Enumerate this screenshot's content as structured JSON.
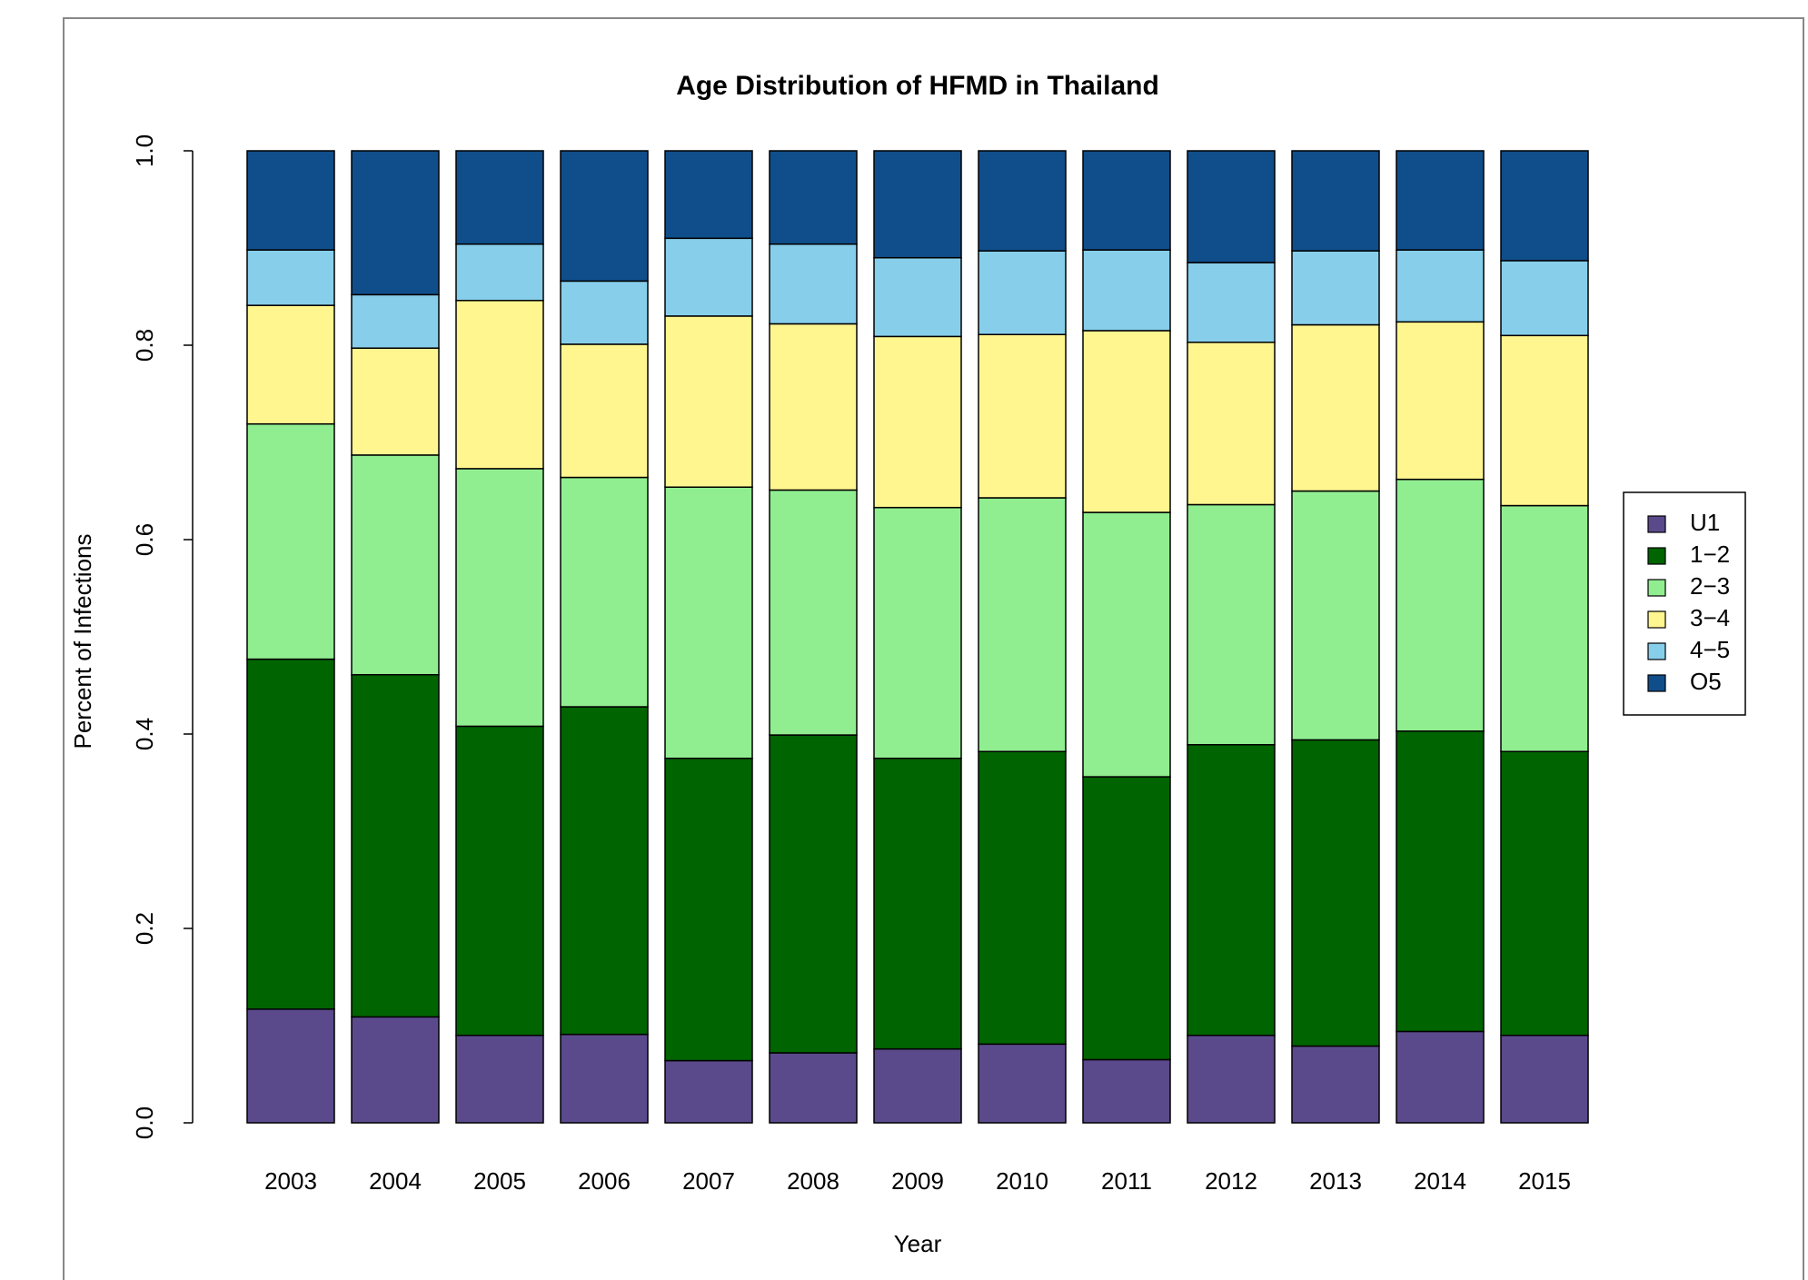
{
  "chart_data": {
    "type": "stacked-bar",
    "title": "Age Distribution of HFMD in Thailand",
    "x_label": "Year",
    "y_label": "Percent of Infections",
    "categories": [
      "2003",
      "2004",
      "2005",
      "2006",
      "2007",
      "2008",
      "2009",
      "2010",
      "2011",
      "2012",
      "2013",
      "2014",
      "2015"
    ],
    "series": [
      {
        "name": "U1",
        "color": "#5b4a8b",
        "values": [
          0.117,
          0.109,
          0.09,
          0.091,
          0.064,
          0.072,
          0.076,
          0.081,
          0.065,
          0.09,
          0.079,
          0.094,
          0.09
        ]
      },
      {
        "name": "1−2",
        "color": "#006400",
        "values": [
          0.36,
          0.352,
          0.318,
          0.337,
          0.311,
          0.327,
          0.299,
          0.301,
          0.291,
          0.299,
          0.315,
          0.309,
          0.292
        ]
      },
      {
        "name": "2−3",
        "color": "#90ee90",
        "values": [
          0.242,
          0.226,
          0.265,
          0.236,
          0.279,
          0.252,
          0.258,
          0.261,
          0.272,
          0.247,
          0.256,
          0.259,
          0.253
        ]
      },
      {
        "name": "3−4",
        "color": "#fff68f",
        "values": [
          0.122,
          0.11,
          0.173,
          0.137,
          0.176,
          0.171,
          0.176,
          0.168,
          0.187,
          0.167,
          0.171,
          0.162,
          0.175
        ]
      },
      {
        "name": "4−5",
        "color": "#87ceeb",
        "values": [
          0.057,
          0.055,
          0.058,
          0.065,
          0.08,
          0.082,
          0.081,
          0.086,
          0.083,
          0.082,
          0.076,
          0.074,
          0.077
        ]
      },
      {
        "name": "O5",
        "color": "#104e8b",
        "values": [
          0.102,
          0.148,
          0.096,
          0.134,
          0.09,
          0.096,
          0.11,
          0.103,
          0.102,
          0.115,
          0.103,
          0.102,
          0.113
        ]
      }
    ],
    "ylim": [
      0,
      1
    ],
    "yticks": [
      {
        "value": 0,
        "label": "0.0"
      },
      0.2,
      0.4,
      0.6,
      0.8,
      {
        "value": 1,
        "label": "1.0"
      }
    ],
    "legend": "right"
  }
}
